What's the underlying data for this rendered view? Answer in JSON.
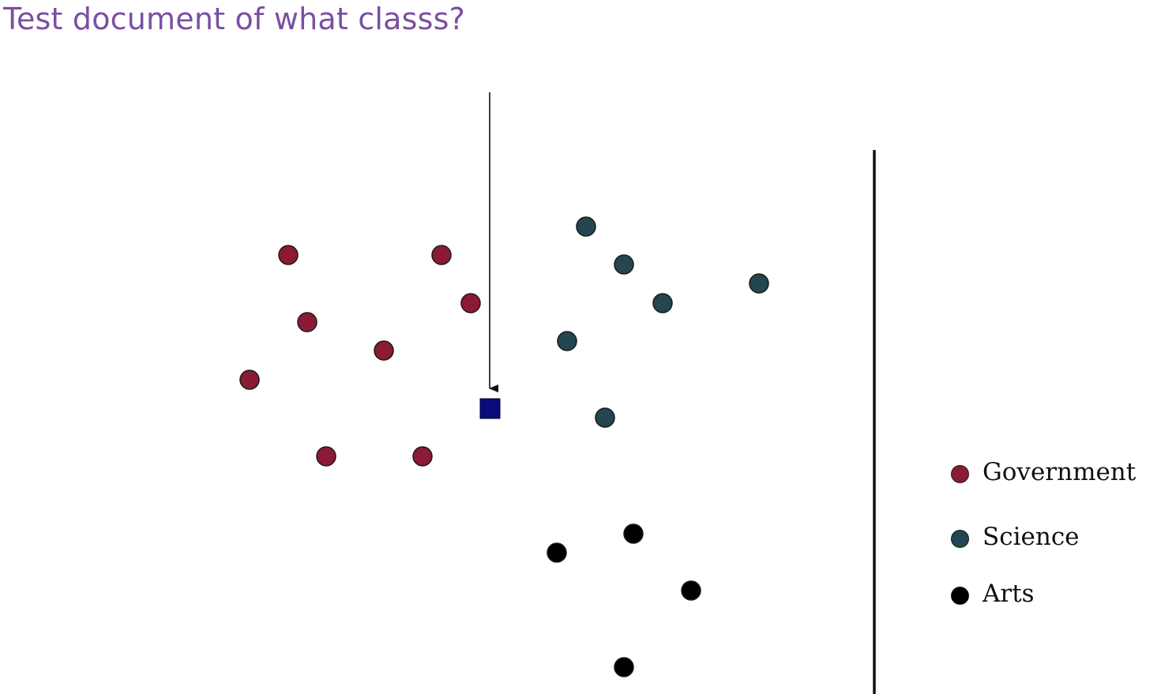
{
  "title": "Test document of what classs?",
  "classes": [
    {
      "key": "government",
      "label": "Government",
      "color": "#8b1a35"
    },
    {
      "key": "science",
      "label": "Science",
      "color": "#234650"
    },
    {
      "key": "arts",
      "label": "Arts",
      "color": "#000000"
    }
  ],
  "test_document": {
    "color": "#0a0a7a",
    "icon": "square"
  },
  "arrow": {
    "icon": "arrow-down"
  }
}
